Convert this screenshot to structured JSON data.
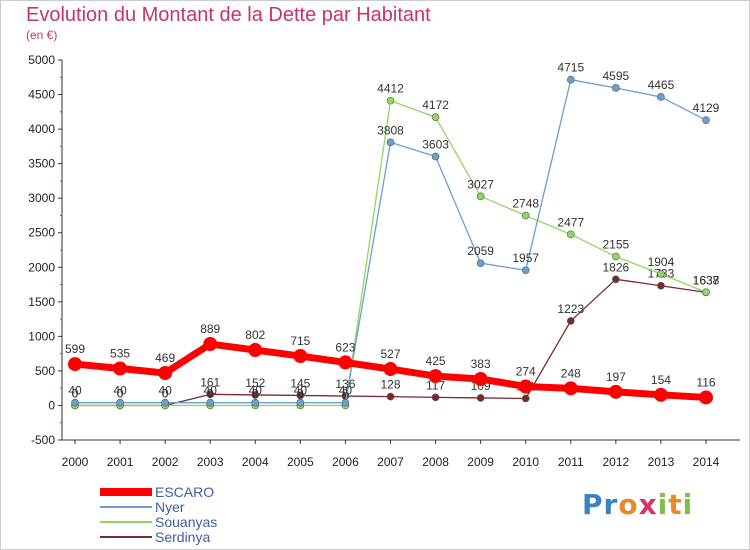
{
  "title": "Evolution du Montant de la Dette par Habitant",
  "subtitle": "(en €)",
  "logo": "Proxiti",
  "chart_data": {
    "type": "line",
    "x": [
      "2000",
      "2001",
      "2002",
      "2003",
      "2004",
      "2005",
      "2006",
      "2007",
      "2008",
      "2009",
      "2010",
      "2011",
      "2012",
      "2013",
      "2014"
    ],
    "ylim": [
      -500,
      5000
    ],
    "yticks": [
      -500,
      0,
      500,
      1000,
      1500,
      2000,
      2500,
      3000,
      3500,
      4000,
      4500,
      5000
    ],
    "grid": false,
    "legend": "bottom-left",
    "series": [
      {
        "name": "ESCARO",
        "color": "#ff0000",
        "values": [
          599,
          535,
          469,
          889,
          802,
          715,
          623,
          527,
          425,
          383,
          274,
          248,
          197,
          154,
          116
        ],
        "labels": [
          "599",
          "535",
          "469",
          "889",
          "802",
          "715",
          "623",
          "527",
          "425",
          "383",
          "274",
          "248",
          "197",
          "154",
          "116"
        ]
      },
      {
        "name": "Nyer",
        "color": "#6a9fd0",
        "values": [
          40,
          40,
          40,
          40,
          40,
          40,
          40,
          3808,
          3603,
          2059,
          1957,
          4715,
          4595,
          4465,
          4129
        ],
        "labels": [
          "40",
          "40",
          "40",
          "40",
          "40",
          "40",
          "40",
          "3808",
          "3603",
          "2059",
          "1957",
          "4715",
          "4595",
          "4465",
          "4129"
        ]
      },
      {
        "name": "Souanyas",
        "color": "#8fd860",
        "values": [
          0,
          0,
          0,
          0,
          0,
          0,
          0,
          4412,
          4172,
          3027,
          2748,
          2477,
          2155,
          1904,
          1638
        ],
        "labels": [
          "0",
          "0",
          "0",
          "0",
          "0",
          "0",
          "0",
          "4412",
          "4172",
          "3027",
          "2748",
          "2477",
          "2155",
          "1904",
          "1638"
        ]
      },
      {
        "name": "Serdinya",
        "color": "#7a2a2a",
        "values": [
          0,
          0,
          0,
          161,
          152,
          145,
          136,
          128,
          117,
          109,
          101,
          1223,
          1826,
          1733,
          1637
        ],
        "labels": [
          "0",
          "0",
          "0",
          "161",
          "152",
          "145",
          "136",
          "128",
          "117",
          "109",
          "101",
          "1223",
          "1826",
          "1733",
          "1637"
        ]
      }
    ]
  }
}
